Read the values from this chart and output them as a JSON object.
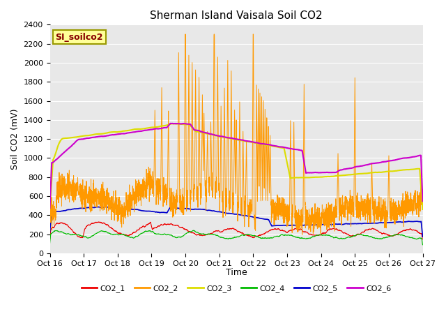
{
  "title": "Sherman Island Vaisala Soil CO2",
  "ylabel": "Soil CO2 (mV)",
  "xlabel": "Time",
  "ylim": [
    0,
    2400
  ],
  "xlim": [
    0,
    11
  ],
  "xtick_labels": [
    "Oct 16",
    "Oct 17",
    "Oct 18",
    "Oct 19",
    "Oct 20",
    "Oct 21",
    "Oct 22",
    "Oct 23",
    "Oct 24",
    "Oct 25",
    "Oct 26",
    "Oct 27"
  ],
  "ytick_values": [
    0,
    200,
    400,
    600,
    800,
    1000,
    1200,
    1400,
    1600,
    1800,
    2000,
    2200,
    2400
  ],
  "colors": {
    "CO2_1": "#ee0000",
    "CO2_2": "#ff9900",
    "CO2_3": "#dddd00",
    "CO2_4": "#00bb00",
    "CO2_5": "#0000cc",
    "CO2_6": "#cc00cc"
  },
  "legend_label": "SI_soilco2",
  "plot_bg_color": "#e8e8e8",
  "grid_color": "#ffffff",
  "title_fontsize": 11,
  "axis_fontsize": 9,
  "tick_fontsize": 8
}
